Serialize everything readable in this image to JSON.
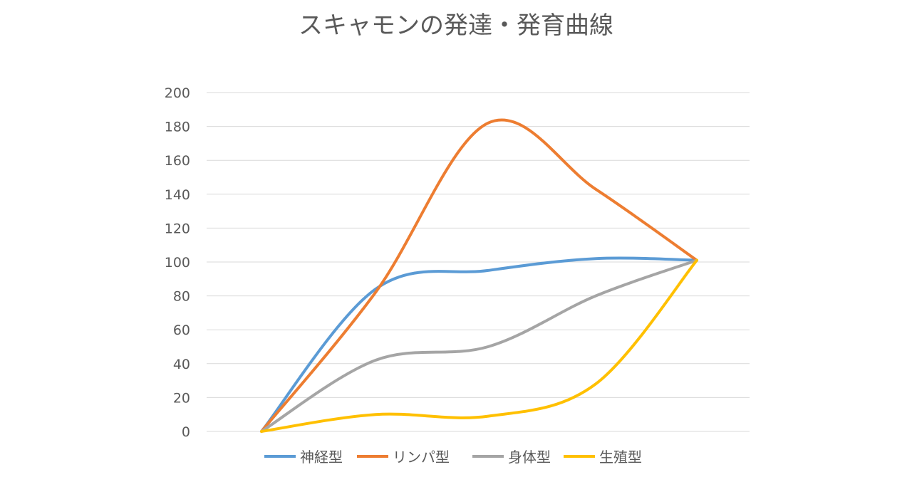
{
  "chart_data": {
    "type": "line",
    "title": "スキャモンの発達・発育曲線",
    "xlabel": "",
    "ylabel": "",
    "ylim": [
      0,
      200
    ],
    "yticks": [
      "0",
      "20",
      "40",
      "60",
      "80",
      "100",
      "120",
      "140",
      "160",
      "180",
      "200"
    ],
    "categories": [
      "",
      "",
      "",
      "",
      ""
    ],
    "grid": true,
    "legend_position": "bottom",
    "smooth": true,
    "series": [
      {
        "name": "神経型",
        "color": "#5b9bd5",
        "values": [
          0,
          84,
          95,
          102,
          101
        ]
      },
      {
        "name": "リンパ型",
        "color": "#ed7d31",
        "values": [
          0,
          82,
          182,
          143,
          101
        ]
      },
      {
        "name": "身体型",
        "color": "#a5a5a5",
        "values": [
          0,
          42,
          50,
          80,
          101
        ]
      },
      {
        "name": "生殖型",
        "color": "#ffc000",
        "values": [
          0,
          10,
          9,
          28,
          101
        ]
      }
    ]
  }
}
